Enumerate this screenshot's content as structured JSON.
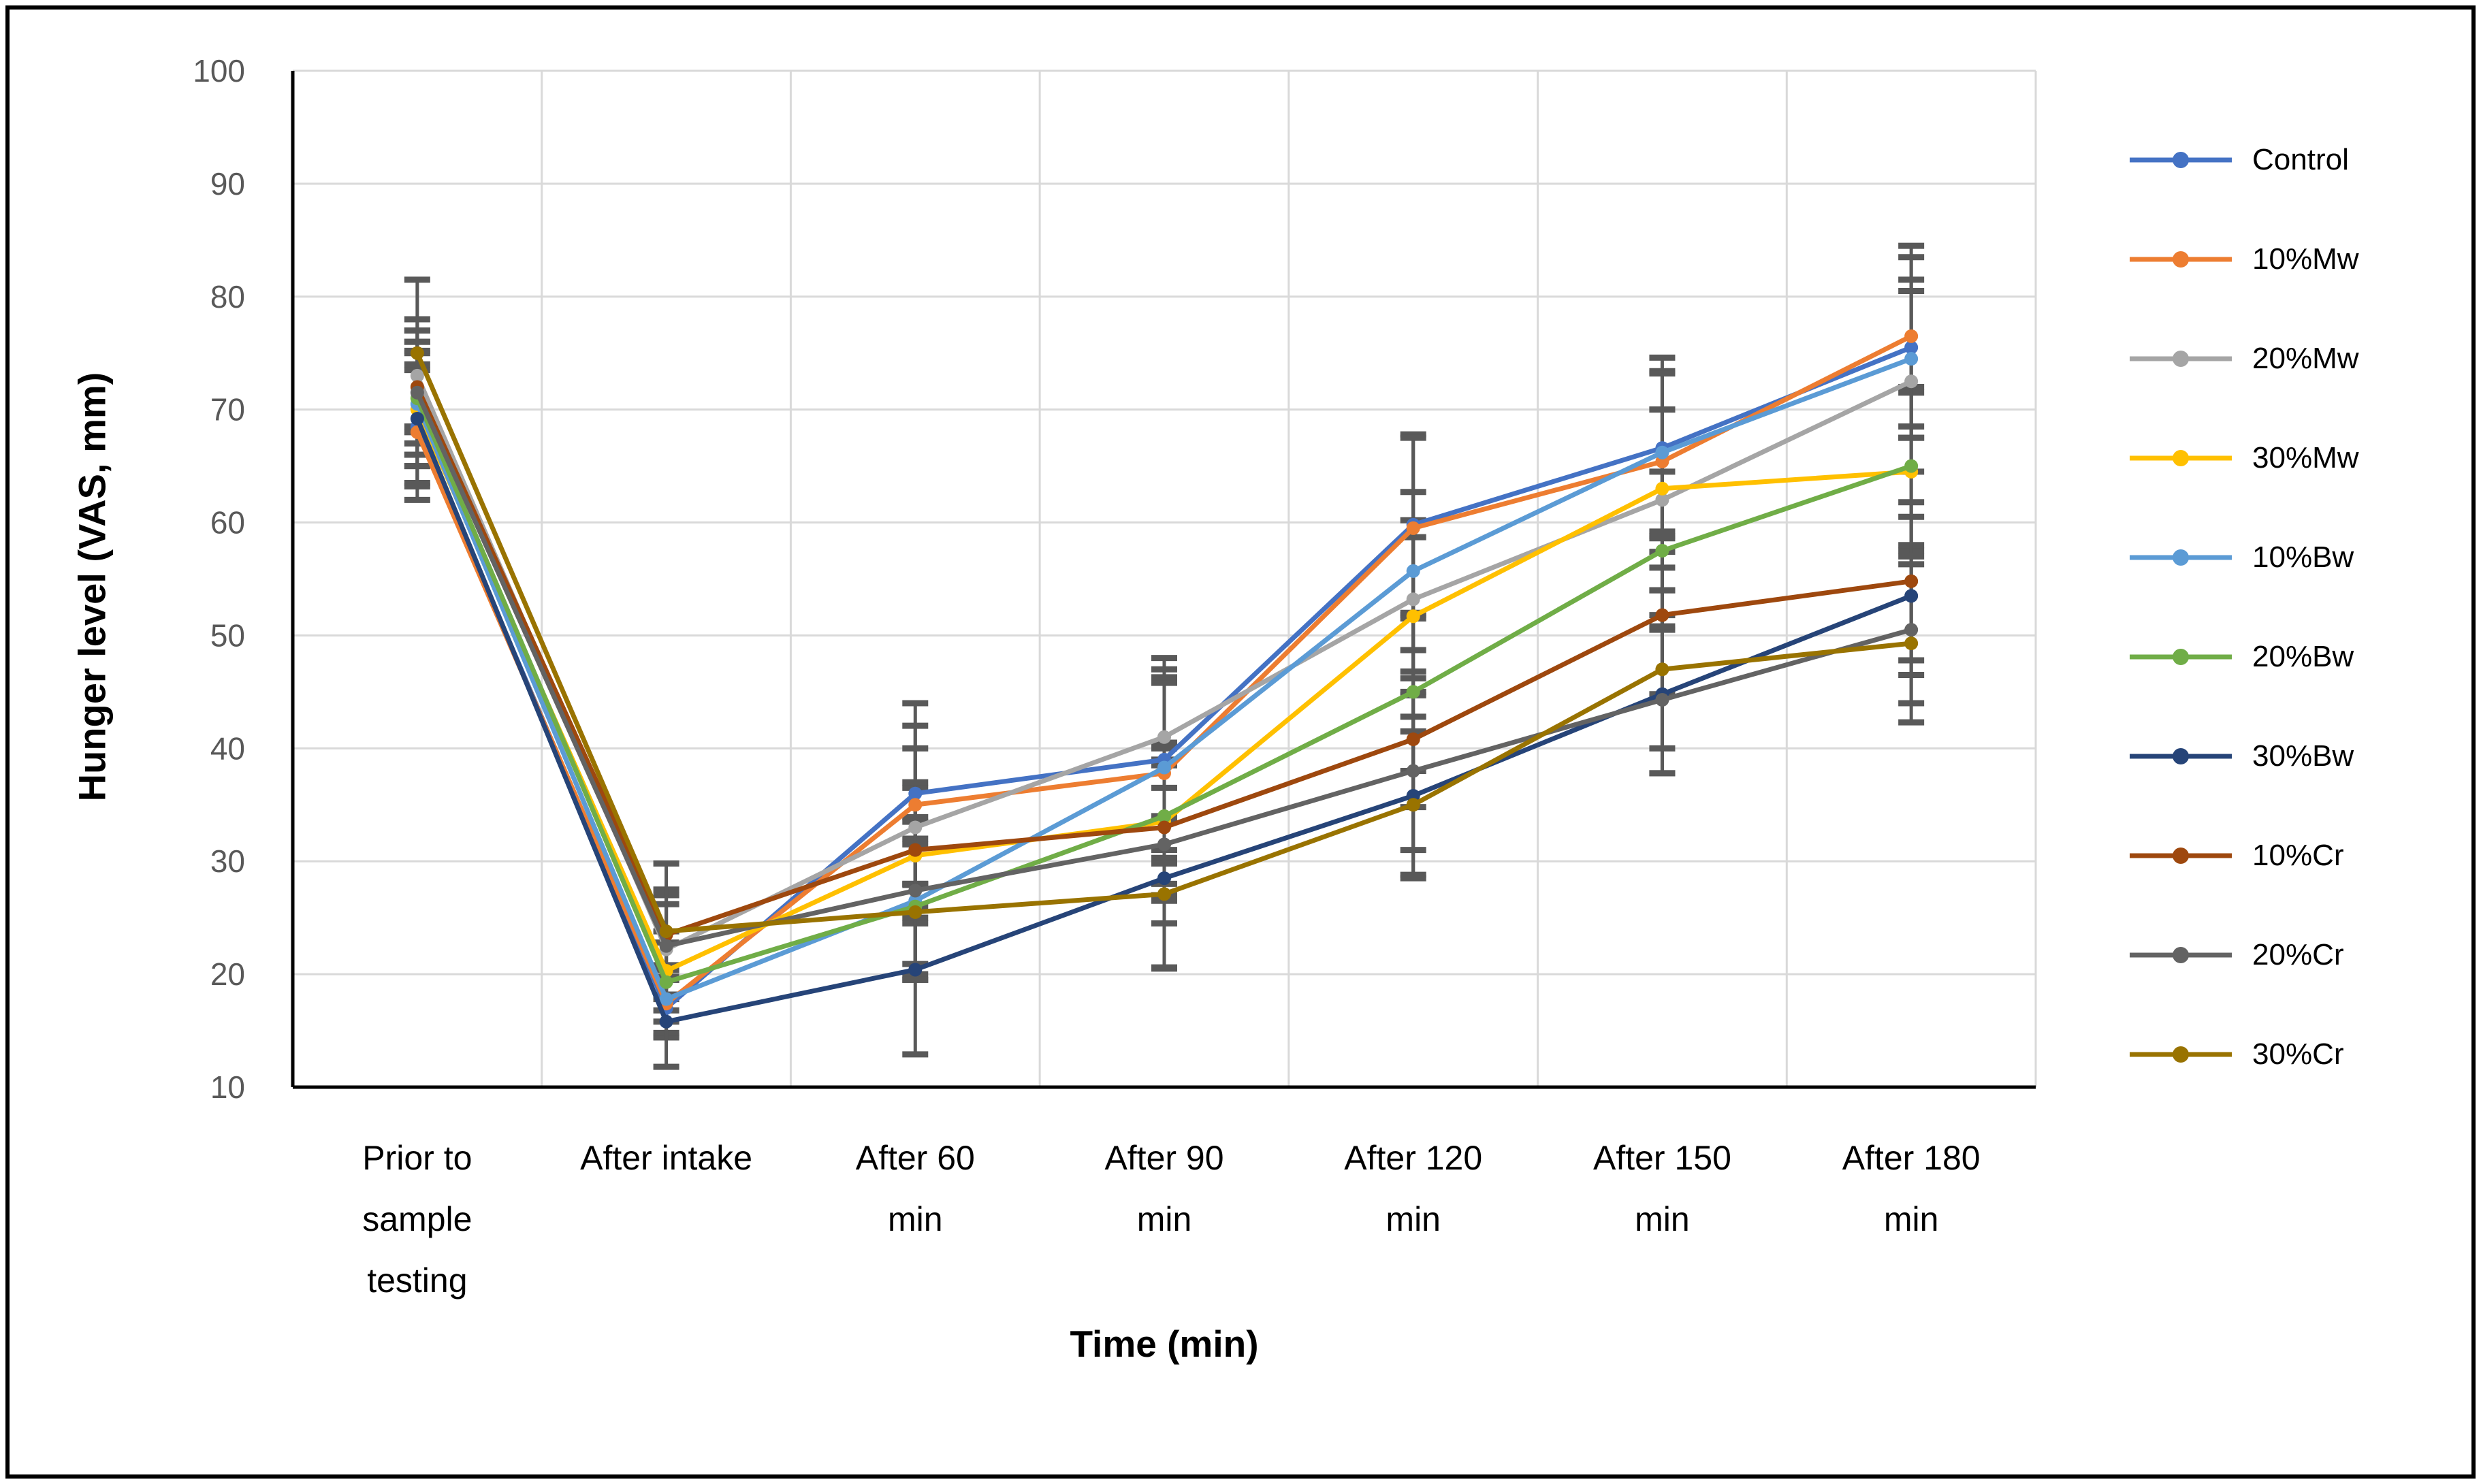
{
  "chart_data": {
    "type": "line",
    "title": "",
    "xlabel": "Time (min)",
    "ylabel": "Hunger level (VAS, mm)",
    "ylim": [
      10,
      100
    ],
    "ytick_step": 10,
    "grid": true,
    "legend_position": "right",
    "categories": [
      "Prior to sample testing",
      "After intake",
      "After 60 min",
      "After 90 min",
      "After 120 min",
      "After 150 min",
      "After 180 min"
    ],
    "category_label_lines": [
      [
        "Prior to",
        "sample",
        "testing"
      ],
      [
        "After intake"
      ],
      [
        "After 60",
        "min"
      ],
      [
        "After 90",
        "min"
      ],
      [
        "After 120",
        "min"
      ],
      [
        "After 150",
        "min"
      ],
      [
        "After 180",
        "min"
      ]
    ],
    "series": [
      {
        "name": "Control",
        "color": "#4472C4",
        "values": [
          68.5,
          17.0,
          36.0,
          39.0,
          59.8,
          66.6,
          75.5
        ],
        "errors": [
          5.0,
          2.5,
          8.0,
          8.0,
          8.0,
          8.0,
          8.0
        ]
      },
      {
        "name": "10%Mw",
        "color": "#ED7D31",
        "values": [
          68.0,
          17.4,
          35.0,
          37.8,
          59.5,
          65.4,
          76.5
        ],
        "errors": [
          6.0,
          3.0,
          7.0,
          8.0,
          8.0,
          8.0,
          8.0
        ]
      },
      {
        "name": "20%Mw",
        "color": "#A5A5A5",
        "values": [
          73.0,
          22.2,
          33.0,
          41.0,
          53.2,
          62.0,
          72.5
        ],
        "errors": [
          5.0,
          4.0,
          7.0,
          7.0,
          7.0,
          8.0,
          8.0
        ]
      },
      {
        "name": "30%Mw",
        "color": "#FFC000",
        "values": [
          70.0,
          20.3,
          30.5,
          33.5,
          51.7,
          63.0,
          64.5
        ],
        "errors": [
          5.0,
          3.5,
          6.0,
          7.0,
          7.0,
          7.0,
          7.0
        ]
      },
      {
        "name": "10%Bw",
        "color": "#5B9BD5",
        "values": [
          70.5,
          17.8,
          26.5,
          38.3,
          55.7,
          66.2,
          74.5
        ],
        "errors": [
          5.5,
          3.0,
          7.0,
          8.0,
          7.0,
          7.0,
          7.0
        ]
      },
      {
        "name": "20%Bw",
        "color": "#70AD47",
        "values": [
          71.0,
          19.3,
          26.0,
          34.0,
          45.0,
          57.5,
          65.0
        ],
        "errors": [
          5.0,
          3.5,
          6.0,
          6.0,
          7.0,
          7.0,
          7.0
        ]
      },
      {
        "name": "30%Bw",
        "color": "#264478",
        "values": [
          69.2,
          15.8,
          20.4,
          28.5,
          35.8,
          44.8,
          53.5
        ],
        "errors": [
          6.0,
          4.0,
          7.5,
          8.0,
          7.0,
          7.0,
          7.0
        ]
      },
      {
        "name": "10%Cr",
        "color": "#9E480E",
        "values": [
          72.0,
          23.5,
          31.0,
          33.0,
          40.8,
          51.8,
          54.8
        ],
        "errors": [
          5.0,
          4.0,
          6.0,
          6.0,
          6.0,
          7.0,
          7.0
        ]
      },
      {
        "name": "20%Cr",
        "color": "#636363",
        "values": [
          71.5,
          22.5,
          27.4,
          31.5,
          38.0,
          44.3,
          50.5
        ],
        "errors": [
          5.5,
          4.5,
          6.5,
          7.0,
          7.0,
          6.5,
          6.5
        ]
      },
      {
        "name": "30%Cr",
        "color": "#997300",
        "values": [
          75.0,
          23.8,
          25.5,
          27.1,
          35.0,
          47.0,
          49.3
        ],
        "errors": [
          6.5,
          6.0,
          6.0,
          6.5,
          6.5,
          7.0,
          7.0
        ]
      }
    ],
    "colors": {
      "gridline": "#D9D9D9",
      "axis": "#000000",
      "tick_label": "#595959",
      "category_label": "#000000",
      "error_bar": "#595959",
      "background": "#FFFFFF",
      "border": "#000000"
    }
  }
}
